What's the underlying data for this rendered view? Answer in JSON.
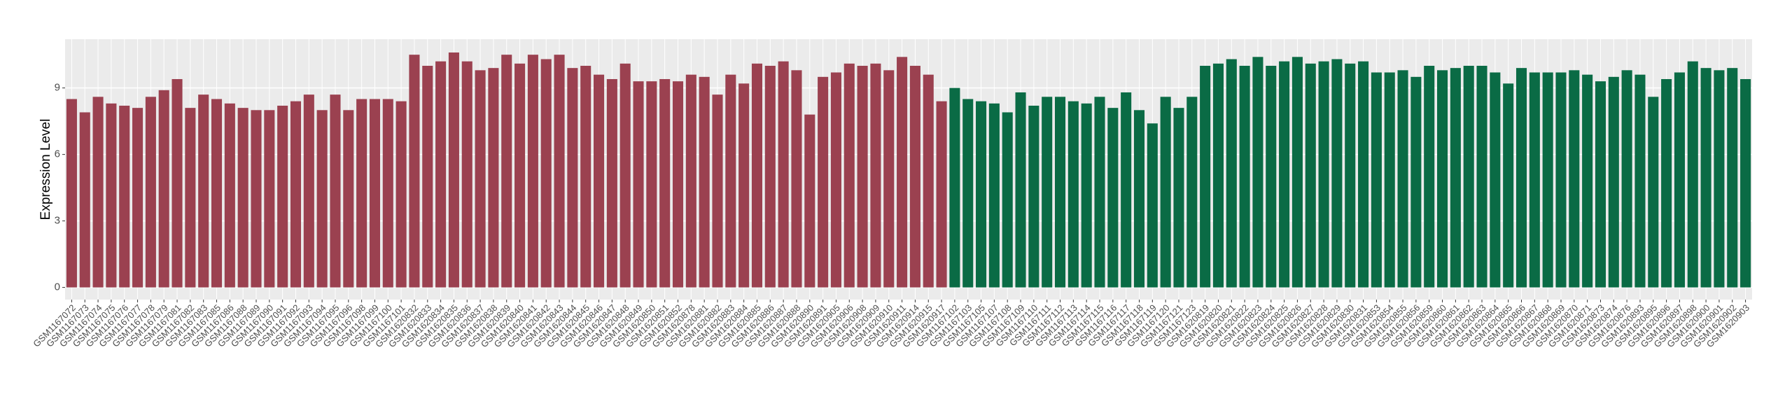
{
  "chart_data": {
    "type": "bar",
    "y_label": "Expression Level",
    "categories": [
      "GSM1167072",
      "GSM1167073",
      "GSM1167074",
      "GSM1167075",
      "GSM1167076",
      "GSM1167077",
      "GSM1167078",
      "GSM1167079",
      "GSM1167081",
      "GSM1167082",
      "GSM1167083",
      "GSM1167085",
      "GSM1167086",
      "GSM1167088",
      "GSM1167089",
      "GSM1167090",
      "GSM1167091",
      "GSM1167092",
      "GSM1167093",
      "GSM1167094",
      "GSM1167095",
      "GSM1167096",
      "GSM1167098",
      "GSM1167099",
      "GSM1167100",
      "GSM1167101",
      "GSM1620832",
      "GSM1620833",
      "GSM1620834",
      "GSM1620835",
      "GSM1620836",
      "GSM1620837",
      "GSM1620838",
      "GSM1620839",
      "GSM1620840",
      "GSM1620841",
      "GSM1620842",
      "GSM1620843",
      "GSM1620844",
      "GSM1620845",
      "GSM1620846",
      "GSM1620847",
      "GSM1620848",
      "GSM1620849",
      "GSM1620850",
      "GSM1620851",
      "GSM1620852",
      "GSM1620878",
      "GSM1620881",
      "GSM1620882",
      "GSM1620883",
      "GSM1620884",
      "GSM1620885",
      "GSM1620886",
      "GSM1620887",
      "GSM1620888",
      "GSM1620890",
      "GSM1620891",
      "GSM1620905",
      "GSM1620906",
      "GSM1620908",
      "GSM1620909",
      "GSM1620910",
      "GSM1620911",
      "GSM1620914",
      "GSM1620915",
      "GSM1620917",
      "GSM1167102",
      "GSM1167103",
      "GSM1167105",
      "GSM1167107",
      "GSM1167108",
      "GSM1167109",
      "GSM1167110",
      "GSM1167111",
      "GSM1167112",
      "GSM1167113",
      "GSM1167114",
      "GSM1167115",
      "GSM1167116",
      "GSM1167117",
      "GSM1167118",
      "GSM1167119",
      "GSM1167120",
      "GSM1167121",
      "GSM1167123",
      "GSM1620819",
      "GSM1620820",
      "GSM1620821",
      "GSM1620822",
      "GSM1620823",
      "GSM1620824",
      "GSM1620825",
      "GSM1620826",
      "GSM1620827",
      "GSM1620828",
      "GSM1620829",
      "GSM1620830",
      "GSM1620831",
      "GSM1620853",
      "GSM1620854",
      "GSM1620855",
      "GSM1620856",
      "GSM1620859",
      "GSM1620860",
      "GSM1620861",
      "GSM1620862",
      "GSM1620863",
      "GSM1620864",
      "GSM1620865",
      "GSM1620866",
      "GSM1620867",
      "GSM1620868",
      "GSM1620869",
      "GSM1620870",
      "GSM1620871",
      "GSM1620873",
      "GSM1620874",
      "GSM1620876",
      "GSM1620893",
      "GSM1620895",
      "GSM1620896",
      "GSM1620897",
      "GSM1620898",
      "GSM1620900",
      "GSM1620901",
      "GSM1620902",
      "GSM1620903"
    ],
    "values": [
      8.5,
      7.9,
      8.6,
      8.3,
      8.2,
      8.1,
      8.6,
      8.9,
      9.4,
      8.1,
      8.7,
      8.5,
      8.3,
      8.1,
      8.0,
      8.0,
      8.2,
      8.4,
      8.7,
      8.0,
      8.7,
      8.0,
      8.5,
      8.5,
      8.5,
      8.4,
      10.5,
      10.0,
      10.2,
      10.6,
      10.2,
      9.8,
      9.9,
      10.5,
      10.1,
      10.5,
      10.3,
      10.5,
      9.9,
      10.0,
      9.6,
      9.4,
      10.1,
      9.3,
      9.3,
      9.4,
      9.3,
      9.6,
      9.5,
      8.7,
      9.6,
      9.2,
      10.1,
      10.0,
      10.2,
      9.8,
      7.8,
      9.5,
      9.7,
      10.1,
      10.0,
      10.1,
      9.8,
      10.4,
      10.0,
      9.6,
      8.4,
      9.0,
      8.5,
      8.4,
      8.3,
      7.9,
      8.8,
      8.2,
      8.6,
      8.6,
      8.4,
      8.3,
      8.6,
      8.1,
      8.8,
      8.0,
      7.4,
      8.6,
      8.1,
      8.6,
      10.0,
      10.1,
      10.3,
      10.0,
      10.4,
      10.0,
      10.2,
      10.4,
      10.1,
      10.2,
      10.3,
      10.1,
      10.2,
      9.7,
      9.7,
      9.8,
      9.5,
      10.0,
      9.8,
      9.9,
      10.0,
      10.0,
      9.7,
      9.2,
      9.9,
      9.7,
      9.7,
      9.7,
      9.8,
      9.6,
      9.3,
      9.5,
      9.8,
      9.6,
      8.6,
      9.4,
      9.7,
      10.2,
      9.9,
      9.8,
      9.9,
      9.4
    ],
    "colors": [
      "#9b4150",
      "#9b4150",
      "#9b4150",
      "#9b4150",
      "#9b4150",
      "#9b4150",
      "#9b4150",
      "#9b4150",
      "#9b4150",
      "#9b4150",
      "#9b4150",
      "#9b4150",
      "#9b4150",
      "#9b4150",
      "#9b4150",
      "#9b4150",
      "#9b4150",
      "#9b4150",
      "#9b4150",
      "#9b4150",
      "#9b4150",
      "#9b4150",
      "#9b4150",
      "#9b4150",
      "#9b4150",
      "#9b4150",
      "#9b4150",
      "#9b4150",
      "#9b4150",
      "#9b4150",
      "#9b4150",
      "#9b4150",
      "#9b4150",
      "#9b4150",
      "#9b4150",
      "#9b4150",
      "#9b4150",
      "#9b4150",
      "#9b4150",
      "#9b4150",
      "#9b4150",
      "#9b4150",
      "#9b4150",
      "#9b4150",
      "#9b4150",
      "#9b4150",
      "#9b4150",
      "#9b4150",
      "#9b4150",
      "#9b4150",
      "#9b4150",
      "#9b4150",
      "#9b4150",
      "#9b4150",
      "#9b4150",
      "#9b4150",
      "#9b4150",
      "#9b4150",
      "#9b4150",
      "#9b4150",
      "#9b4150",
      "#9b4150",
      "#9b4150",
      "#9b4150",
      "#9b4150",
      "#9b4150",
      "#9b4150",
      "#0a6b45",
      "#0a6b45",
      "#0a6b45",
      "#0a6b45",
      "#0a6b45",
      "#0a6b45",
      "#0a6b45",
      "#0a6b45",
      "#0a6b45",
      "#0a6b45",
      "#0a6b45",
      "#0a6b45",
      "#0a6b45",
      "#0a6b45",
      "#0a6b45",
      "#0a6b45",
      "#0a6b45",
      "#0a6b45",
      "#0a6b45",
      "#0a6b45",
      "#0a6b45",
      "#0a6b45",
      "#0a6b45",
      "#0a6b45",
      "#0a6b45",
      "#0a6b45",
      "#0a6b45",
      "#0a6b45",
      "#0a6b45",
      "#0a6b45",
      "#0a6b45",
      "#0a6b45",
      "#0a6b45",
      "#0a6b45",
      "#0a6b45",
      "#0a6b45",
      "#0a6b45",
      "#0a6b45",
      "#0a6b45",
      "#0a6b45",
      "#0a6b45",
      "#0a6b45",
      "#0a6b45",
      "#0a6b45",
      "#0a6b45",
      "#0a6b45",
      "#0a6b45",
      "#0a6b45",
      "#0a6b45",
      "#0a6b45",
      "#0a6b45",
      "#0a6b45",
      "#0a6b45",
      "#0a6b45",
      "#0a6b45",
      "#0a6b45",
      "#0a6b45",
      "#0a6b45",
      "#0a6b45",
      "#0a6b45",
      "#0a6b45"
    ],
    "ylim": [
      -0.55,
      11.2
    ],
    "yticks": [
      0,
      3,
      6,
      9
    ],
    "grid": true
  }
}
